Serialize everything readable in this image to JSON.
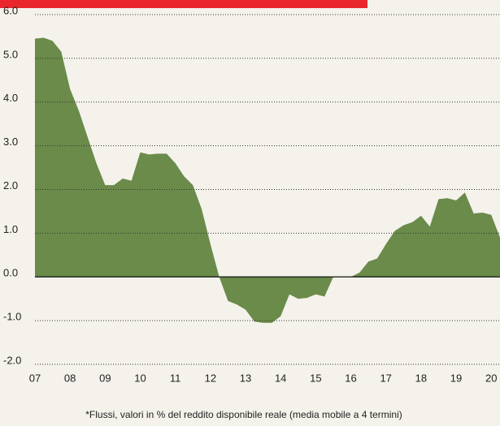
{
  "chart_data": {
    "type": "area",
    "note": "*Flussi, valori in % del reddito disponibile reale (media mobile a 4 termini)",
    "categories": [
      "07",
      null,
      null,
      null,
      "08",
      null,
      null,
      null,
      "09",
      null,
      null,
      null,
      "10",
      null,
      null,
      null,
      "11",
      null,
      null,
      null,
      "12",
      null,
      null,
      null,
      "13",
      null,
      null,
      null,
      "14",
      null,
      null,
      null,
      "15",
      null,
      null,
      null,
      "16",
      null,
      null,
      null,
      "17",
      null,
      null,
      null,
      "18",
      null,
      null,
      null,
      "19",
      null,
      null,
      null,
      "20",
      null
    ],
    "values": [
      5.45,
      5.47,
      5.4,
      5.15,
      4.3,
      3.8,
      3.2,
      2.6,
      2.1,
      2.1,
      2.25,
      2.2,
      2.85,
      2.8,
      2.82,
      2.82,
      2.6,
      2.3,
      2.1,
      1.55,
      0.75,
      0,
      -0.55,
      -0.63,
      -0.75,
      -1.02,
      -1.05,
      -1.05,
      -0.9,
      -0.4,
      -0.5,
      -0.48,
      -0.4,
      -0.45,
      0,
      0,
      0,
      0.1,
      0.35,
      0.42,
      0.75,
      1.05,
      1.18,
      1.25,
      1.4,
      1.15,
      1.78,
      1.8,
      1.75,
      1.93,
      1.45,
      1.47,
      1.42,
      0.9
    ],
    "color": "#6a8b4a",
    "ylim": [
      -2,
      6
    ],
    "yticks": [
      {
        "value": -2,
        "label": "-2.0"
      },
      {
        "value": -1,
        "label": "-1.0"
      },
      {
        "value": 0,
        "label": "0.0"
      },
      {
        "value": 1,
        "label": "1.0"
      },
      {
        "value": 2,
        "label": "2.0"
      },
      {
        "value": 3,
        "label": "3.0"
      },
      {
        "value": 4,
        "label": "4.0"
      },
      {
        "value": 5,
        "label": "5.0"
      },
      {
        "value": 6,
        "label": "6.0"
      }
    ],
    "grid": true
  }
}
